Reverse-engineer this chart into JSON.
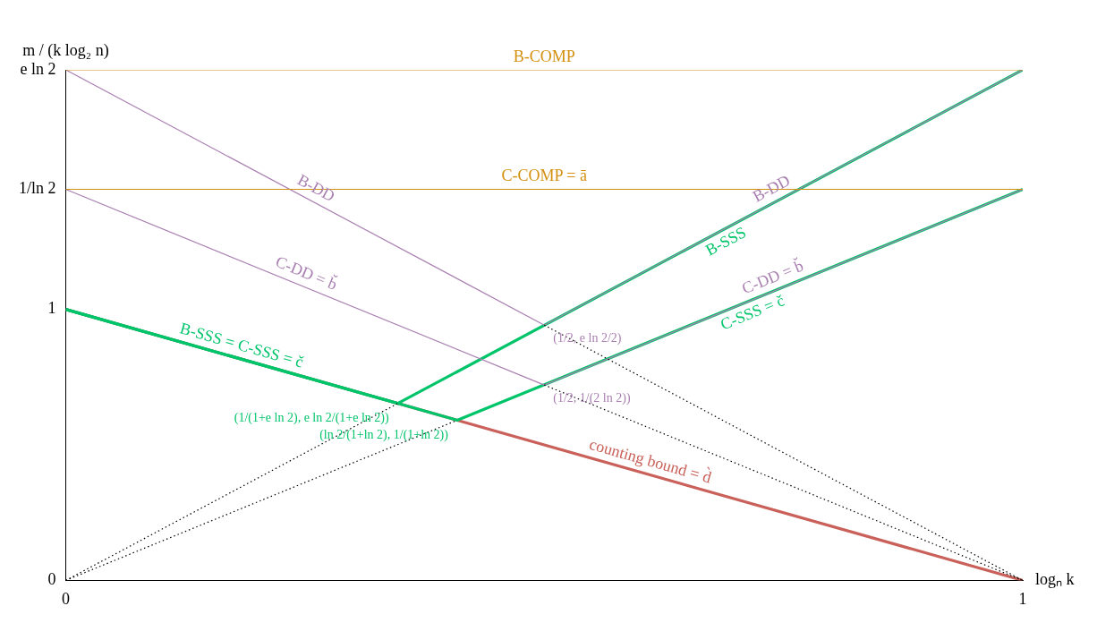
{
  "chart_data": {
    "type": "line",
    "xlabel": "logₙ k",
    "ylabel": "m / (k log₂ n)",
    "xlim": [
      0,
      1
    ],
    "xticks": [
      {
        "value": 0,
        "label": "0"
      },
      {
        "value": 1,
        "label": "1"
      }
    ],
    "ylim": [
      0,
      1.884
    ],
    "yticks": [
      {
        "value": 0,
        "label": "0"
      },
      {
        "value": 1,
        "label": "1"
      },
      {
        "value": 1.443,
        "label": "1/ln 2"
      },
      {
        "value": 1.884,
        "label": "e ln 2"
      }
    ],
    "grid": false,
    "legend": false,
    "marker": "none",
    "series": [
      {
        "color": "#d4900f",
        "x": [
          0,
          1
        ],
        "values": [
          1.884,
          1.884
        ],
        "line_style": "solid"
      },
      {
        "color": "#d4900f",
        "x": [
          0,
          1
        ],
        "values": [
          1.443,
          1.443
        ],
        "line_style": "solid"
      },
      {
        "color": "#a97fb1",
        "x": [
          0,
          0.5,
          1
        ],
        "values": [
          1.884,
          0.942,
          1.884
        ],
        "line_style": "solid"
      },
      {
        "color": "#a97fb1",
        "x": [
          0,
          0.5,
          1
        ],
        "values": [
          1.443,
          0.721,
          1.443
        ],
        "line_style": "solid"
      },
      {
        "color": "#00c46a",
        "x": [
          0,
          0.347,
          1
        ],
        "values": [
          1,
          0.653,
          1.884
        ],
        "line_style": "solid"
      },
      {
        "color": "#00c46a",
        "x": [
          0,
          0.409,
          1
        ],
        "values": [
          1,
          0.591,
          1.443
        ],
        "line_style": "solid"
      },
      {
        "color": "#c9615a",
        "x": [
          0,
          1
        ],
        "values": [
          1,
          0
        ],
        "line_style": "solid"
      },
      {
        "color": "#000000",
        "x": [
          0.5,
          1
        ],
        "values": [
          0.942,
          0
        ],
        "line_style": "dotted"
      },
      {
        "color": "#000000",
        "x": [
          0.5,
          1
        ],
        "values": [
          0.721,
          0
        ],
        "line_style": "dotted"
      },
      {
        "color": "#000000",
        "x": [
          0,
          0.347
        ],
        "values": [
          0,
          0.653
        ],
        "line_style": "dotted"
      },
      {
        "color": "#000000",
        "x": [
          0,
          0.409
        ],
        "values": [
          0,
          0.591
        ],
        "line_style": "dotted"
      }
    ],
    "annotations": [
      {
        "text": "B-COMP",
        "x": 0.5,
        "y": 1.884
      },
      {
        "text": "C-COMP = ā",
        "x": 0.5,
        "y": 1.443
      },
      {
        "text": "B-DD",
        "x": 0.255,
        "y": 1.404
      },
      {
        "text": "B-DD",
        "x": 0.744,
        "y": 1.402
      },
      {
        "text": "C-DD = b̆",
        "x": 0.246,
        "y": 1.088
      },
      {
        "text": "C-DD = b̆",
        "x": 0.744,
        "y": 1.073
      },
      {
        "text": "B-SSS",
        "x": 0.684,
        "y": 1.289
      },
      {
        "text": "C-SSS = č",
        "x": 0.713,
        "y": 1.028
      },
      {
        "text": "B-SSS = C-SSS = č",
        "x": 0.18,
        "y": 0.82
      },
      {
        "text": "counting bound = d̀",
        "x": 0.607,
        "y": 0.393
      },
      {
        "text": "(1/2, e ln 2/2)",
        "x": 0.5,
        "y": 0.942
      },
      {
        "text": "(1/2, 1/(2 ln 2))",
        "x": 0.5,
        "y": 0.721
      },
      {
        "text": "(1/(1+e ln 2), e ln 2/(1+e ln 2))",
        "x": 0.347,
        "y": 0.653
      },
      {
        "text": "(ln 2/(1+ln 2), 1/(1+ln 2))",
        "x": 0.409,
        "y": 0.591
      }
    ]
  }
}
